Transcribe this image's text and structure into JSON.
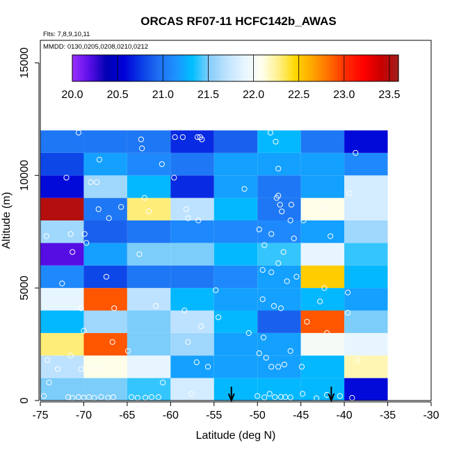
{
  "chart_data": {
    "type": "heatmap",
    "title": "ORCAS RF07-11 HCFC142b_AWAS",
    "subtitle_flights": "Flts: 7,8,9,10,11",
    "subtitle_dates": "MMDD: 0130,0205,0208,0210,0212",
    "xlabel": "Latitude (deg N)",
    "ylabel": "Altitude (m)",
    "xlim": [
      -75,
      -30
    ],
    "ylim": [
      0,
      16000
    ],
    "x_ticks": [
      "-75",
      "-70",
      "-65",
      "-60",
      "-55",
      "-50",
      "-45",
      "-40",
      "-35",
      "-30"
    ],
    "y_ticks": [
      "0",
      "5000",
      "10000",
      "15000"
    ],
    "colorbar": {
      "min": 20.0,
      "max": 23.6,
      "ticks": [
        "20.0",
        "20.5",
        "21.0",
        "21.5",
        "22.0",
        "22.5",
        "23.0",
        "23.5"
      ],
      "colors": [
        "#9b30ff",
        "#5a0ee6",
        "#0000b3",
        "#0000d8",
        "#0a3ce6",
        "#1e6ef0",
        "#1e90ff",
        "#00bfff",
        "#87cefa",
        "#bfe3ff",
        "#e6f5ff",
        "#fffff0",
        "#fff08c",
        "#ffd700",
        "#ffa500",
        "#ff6a00",
        "#ff2800",
        "#ff0000",
        "#c80000",
        "#a01e1e"
      ]
    },
    "bin_edges_lat": [
      -75,
      -70,
      -65,
      -60,
      -55,
      -50,
      -45,
      -40,
      -35
    ],
    "bin_edges_alt": [
      0,
      1000,
      2000,
      3000,
      4000,
      5000,
      6000,
      7000,
      8000,
      9000,
      10000,
      11000,
      12000
    ],
    "grid_values_bottom_to_top": [
      [
        21.5,
        21.5,
        21.4,
        21.8,
        21.3,
        21.3,
        21.3,
        20.6
      ],
      [
        21.7,
        22.1,
        21.9,
        21.2,
        21.2,
        21.2,
        21.3,
        22.2
      ],
      [
        22.3,
        22.9,
        21.5,
        21.6,
        21.2,
        21.2,
        22.0,
        21.9
      ],
      [
        21.3,
        21.6,
        21.5,
        21.7,
        21.3,
        20.9,
        22.9,
        21.5
      ],
      [
        21.9,
        22.9,
        21.7,
        21.3,
        21.2,
        21.2,
        21.3,
        21.2
      ],
      [
        21.1,
        20.8,
        21.0,
        21.0,
        21.1,
        21.2,
        22.5,
        21.3
      ],
      [
        20.2,
        21.2,
        21.5,
        21.5,
        21.3,
        21.4,
        21.9,
        21.4
      ],
      [
        21.6,
        20.9,
        21.0,
        21.1,
        21.1,
        21.1,
        21.2,
        21.6
      ],
      [
        23.5,
        21.0,
        22.3,
        21.7,
        21.3,
        21.0,
        22.1,
        21.8
      ],
      [
        20.6,
        21.6,
        21.3,
        20.7,
        21.2,
        21.0,
        21.2,
        21.8
      ],
      [
        20.8,
        21.2,
        21.1,
        21.0,
        21.2,
        21.2,
        21.2,
        21.1
      ],
      [
        21.0,
        21.0,
        21.0,
        20.7,
        20.9,
        21.3,
        21.0,
        20.6
      ]
    ],
    "samples": [
      {
        "lat": -74.6,
        "alt": 200
      },
      {
        "lat": -74.0,
        "alt": 800
      },
      {
        "lat": -71.8,
        "alt": 150
      },
      {
        "lat": -71.3,
        "alt": 120
      },
      {
        "lat": -70.6,
        "alt": 150
      },
      {
        "lat": -70.0,
        "alt": 130
      },
      {
        "lat": -69.4,
        "alt": 150
      },
      {
        "lat": -68.8,
        "alt": 120
      },
      {
        "lat": -68.0,
        "alt": 160
      },
      {
        "lat": -67.2,
        "alt": 130
      },
      {
        "lat": -66.6,
        "alt": 150
      },
      {
        "lat": -64.5,
        "alt": 150
      },
      {
        "lat": -63.8,
        "alt": 120
      },
      {
        "lat": -62.9,
        "alt": 130
      },
      {
        "lat": -62.2,
        "alt": 150
      },
      {
        "lat": -61.4,
        "alt": 150
      },
      {
        "lat": -60.9,
        "alt": 800
      },
      {
        "lat": -57.6,
        "alt": 300
      },
      {
        "lat": -50.0,
        "alt": 200
      },
      {
        "lat": -49.2,
        "alt": 140
      },
      {
        "lat": -48.6,
        "alt": 300
      },
      {
        "lat": -48.0,
        "alt": 150
      },
      {
        "lat": -47.3,
        "alt": 160
      },
      {
        "lat": -46.8,
        "alt": 150
      },
      {
        "lat": -46.2,
        "alt": 140
      },
      {
        "lat": -44.8,
        "alt": 300
      },
      {
        "lat": -43.2,
        "alt": 100
      },
      {
        "lat": -42.0,
        "alt": 250
      },
      {
        "lat": -40.5,
        "alt": 200
      },
      {
        "lat": -39.1,
        "alt": 120
      },
      {
        "lat": -74.2,
        "alt": 1800
      },
      {
        "lat": -73.0,
        "alt": 1400
      },
      {
        "lat": -71.5,
        "alt": 2000
      },
      {
        "lat": -70.3,
        "alt": 1400
      },
      {
        "lat": -68.0,
        "alt": 1500
      },
      {
        "lat": -69.0,
        "alt": 1500
      },
      {
        "lat": -66.7,
        "alt": 2600
      },
      {
        "lat": -64.9,
        "alt": 2200
      },
      {
        "lat": -57.0,
        "alt": 1700
      },
      {
        "lat": -55.7,
        "alt": 1500
      },
      {
        "lat": -58.0,
        "alt": 2600
      },
      {
        "lat": -49.8,
        "alt": 2100
      },
      {
        "lat": -49.0,
        "alt": 1900
      },
      {
        "lat": -48.4,
        "alt": 1500
      },
      {
        "lat": -47.6,
        "alt": 1500
      },
      {
        "lat": -46.9,
        "alt": 1600
      },
      {
        "lat": -46.2,
        "alt": 2200
      },
      {
        "lat": -44.9,
        "alt": 1500
      },
      {
        "lat": -49.3,
        "alt": 2800
      },
      {
        "lat": -38.5,
        "alt": 1800
      },
      {
        "lat": -70.0,
        "alt": 3100
      },
      {
        "lat": -70.3,
        "alt": 4100
      },
      {
        "lat": -66.5,
        "alt": 4100
      },
      {
        "lat": -61.7,
        "alt": 4200
      },
      {
        "lat": -58.4,
        "alt": 4000
      },
      {
        "lat": -56.5,
        "alt": 3300
      },
      {
        "lat": -54.8,
        "alt": 4900
      },
      {
        "lat": -54.5,
        "alt": 3700
      },
      {
        "lat": -51.0,
        "alt": 3000
      },
      {
        "lat": -49.4,
        "alt": 4500
      },
      {
        "lat": -48.1,
        "alt": 4200
      },
      {
        "lat": -47.3,
        "alt": 4100
      },
      {
        "lat": -44.3,
        "alt": 3500
      },
      {
        "lat": -42.0,
        "alt": 3000
      },
      {
        "lat": -39.6,
        "alt": 3900
      },
      {
        "lat": -42.8,
        "alt": 4400
      },
      {
        "lat": -71.3,
        "alt": 6600
      },
      {
        "lat": -72.5,
        "alt": 5200
      },
      {
        "lat": -67.4,
        "alt": 5500
      },
      {
        "lat": -63.6,
        "alt": 6500
      },
      {
        "lat": -49.4,
        "alt": 5800
      },
      {
        "lat": -48.4,
        "alt": 5700
      },
      {
        "lat": -47.6,
        "alt": 6100
      },
      {
        "lat": -46.6,
        "alt": 5300
      },
      {
        "lat": -45.5,
        "alt": 5500
      },
      {
        "lat": -42.3,
        "alt": 5000
      },
      {
        "lat": -39.6,
        "alt": 4800
      },
      {
        "lat": -47.0,
        "alt": 6600
      },
      {
        "lat": -71.5,
        "alt": 7400
      },
      {
        "lat": -69.7,
        "alt": 7000
      },
      {
        "lat": -69.9,
        "alt": 7400
      },
      {
        "lat": -67.1,
        "alt": 8100
      },
      {
        "lat": -65.7,
        "alt": 8600
      },
      {
        "lat": -62.5,
        "alt": 8400
      },
      {
        "lat": -58.2,
        "alt": 8500
      },
      {
        "lat": -58.0,
        "alt": 8100
      },
      {
        "lat": -56.8,
        "alt": 8000
      },
      {
        "lat": -49.8,
        "alt": 7600
      },
      {
        "lat": -49.2,
        "alt": 6900
      },
      {
        "lat": -48.4,
        "alt": 7400
      },
      {
        "lat": -47.2,
        "alt": 8400
      },
      {
        "lat": -46.1,
        "alt": 8700
      },
      {
        "lat": -45.8,
        "alt": 7200
      },
      {
        "lat": -44.7,
        "alt": 8000
      },
      {
        "lat": -42.5,
        "alt": 8600
      },
      {
        "lat": -41.6,
        "alt": 7300
      },
      {
        "lat": -74.3,
        "alt": 7300
      },
      {
        "lat": -68.3,
        "alt": 8500
      },
      {
        "lat": -47.4,
        "alt": 8700
      },
      {
        "lat": -47.8,
        "alt": 9000
      },
      {
        "lat": -46.2,
        "alt": 8000
      },
      {
        "lat": -72.0,
        "alt": 9900
      },
      {
        "lat": -69.2,
        "alt": 9700
      },
      {
        "lat": -68.5,
        "alt": 9700
      },
      {
        "lat": -68.2,
        "alt": 10700
      },
      {
        "lat": -63.0,
        "alt": 9000
      },
      {
        "lat": -61.0,
        "alt": 10500
      },
      {
        "lat": -59.6,
        "alt": 9900
      },
      {
        "lat": -51.5,
        "alt": 9400
      },
      {
        "lat": -47.6,
        "alt": 10300
      },
      {
        "lat": -47.6,
        "alt": 9100
      },
      {
        "lat": -39.4,
        "alt": 9200
      },
      {
        "lat": -70.6,
        "alt": 11900
      },
      {
        "lat": -63.3,
        "alt": 11200
      },
      {
        "lat": -63.4,
        "alt": 11600
      },
      {
        "lat": -59.5,
        "alt": 11700
      },
      {
        "lat": -58.6,
        "alt": 11700
      },
      {
        "lat": -56.9,
        "alt": 11700
      },
      {
        "lat": -56.4,
        "alt": 11600
      },
      {
        "lat": -48.5,
        "alt": 11900
      },
      {
        "lat": -47.9,
        "alt": 11500
      },
      {
        "lat": -38.7,
        "alt": 11000
      },
      {
        "lat": -56.6,
        "alt": 11700
      }
    ],
    "arrows_at_lat": [
      -53.0,
      -41.5
    ]
  }
}
